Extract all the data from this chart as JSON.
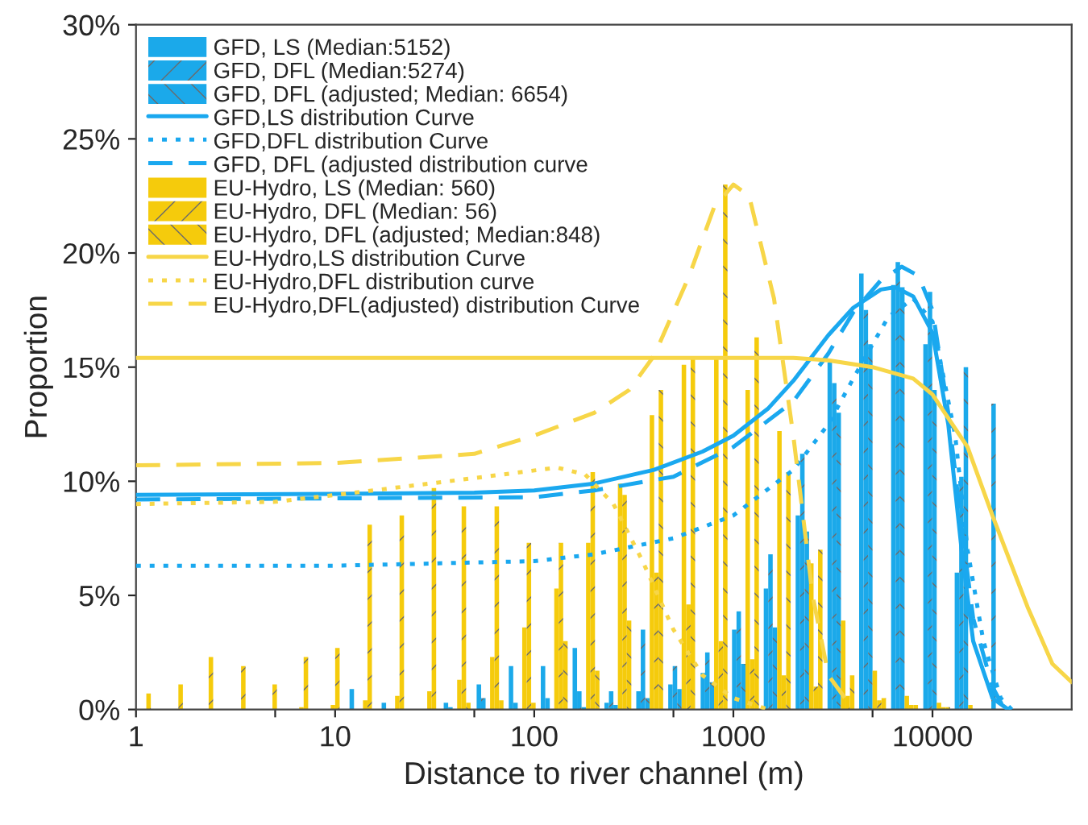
{
  "chart_data": {
    "type": "bar",
    "xlabel": "Distance to river channel (m)",
    "ylabel": "Proportion",
    "log": "x",
    "x": [
      1.07,
      1.55,
      2.2,
      3.2,
      4.6,
      6.6,
      9.5,
      13.8,
      20,
      29,
      41,
      60,
      87,
      126,
      182,
      263,
      380,
      550,
      800,
      1150,
      1660,
      2400,
      3470,
      5000,
      7240,
      10500,
      15100,
      21900
    ],
    "xlim": [
      1,
      50000
    ],
    "xticks": [
      1,
      10,
      100,
      1000,
      10000,
      {
        "value": 5,
        "label": null
      },
      {
        "value": 50,
        "label": null
      },
      {
        "value": 500,
        "label": null
      },
      {
        "value": 5000,
        "label": null
      }
    ],
    "ylim": [
      0,
      30
    ],
    "yticks": [
      {
        "value": 0,
        "label": "0%"
      },
      {
        "value": 5,
        "label": "5%"
      },
      {
        "value": 10,
        "label": "10%"
      },
      {
        "value": 15,
        "label": "15%"
      },
      {
        "value": 20,
        "label": "20%"
      },
      {
        "value": 25,
        "label": "25%"
      },
      {
        "value": 30,
        "label": "30%"
      }
    ],
    "grid": false,
    "legend": "top left",
    "series": [
      {
        "name": "GFD, LS (Median:5152)",
        "color": "#1ba9ea",
        "values": [
          0,
          0,
          0,
          0,
          0,
          0,
          0,
          0.9,
          0.3,
          0,
          0.3,
          1.1,
          1.9,
          1.9,
          2.7,
          0.3,
          0.8,
          1.1,
          1.6,
          3.5,
          5.3,
          8.5,
          15.2,
          19.1,
          18.6,
          16.0,
          6.0,
          0
        ]
      },
      {
        "name": "GFD, DFL (Median:5274)",
        "color": "#1ba9ea",
        "values": [
          0,
          0,
          0,
          0,
          0,
          0,
          0,
          0,
          0,
          0,
          0.1,
          0.5,
          0.3,
          0.5,
          0.8,
          0.8,
          3.5,
          1.9,
          2.5,
          4.3,
          6.8,
          11.2,
          14.3,
          17.5,
          19.6,
          18.3,
          10.2,
          13.4
        ]
      },
      {
        "name": "GFD, DFL (adjusted; Median: 6654)",
        "color": "#1ba9ea",
        "values": [
          0,
          0,
          0,
          0,
          0,
          0,
          0,
          0,
          0,
          0,
          0,
          0,
          0,
          0,
          0.1,
          0.2,
          0.5,
          0.9,
          1.2,
          2.0,
          3.6,
          7.8,
          13.0,
          16.0,
          18.5,
          14.0,
          15.0,
          0
        ]
      },
      {
        "name": "GFD,LS distribution Curve",
        "type": "line",
        "line_style": "solid",
        "color": "#1aa8ef",
        "x": [
          1,
          10,
          50,
          100,
          200,
          400,
          700,
          1000,
          1500,
          2000,
          3000,
          4000,
          5500,
          6500,
          8000,
          10000,
          12000,
          14000,
          16000,
          20000,
          24000
        ],
        "values": [
          9.4,
          9.45,
          9.5,
          9.6,
          9.9,
          10.5,
          11.3,
          12.0,
          13.2,
          14.4,
          16.4,
          17.6,
          18.4,
          18.5,
          18.1,
          16.5,
          12.5,
          7.0,
          3.0,
          0.5,
          0
        ]
      },
      {
        "name": "GFD,DFL distribution Curve",
        "type": "line",
        "line_style": "dotted",
        "color": "#1aa8ef",
        "x": [
          1,
          10,
          100,
          200,
          500,
          1000,
          2000,
          3000,
          4000,
          5000,
          6000,
          8000,
          10000,
          13000,
          15000,
          18000,
          22000,
          25000
        ],
        "values": [
          6.3,
          6.3,
          6.5,
          6.8,
          7.5,
          8.5,
          10.5,
          12.5,
          14.5,
          16.0,
          17.2,
          18.0,
          17.0,
          12.0,
          7.0,
          3.0,
          0.5,
          0
        ]
      },
      {
        "name": "GFD, DFL (adjusted distribution curve",
        "type": "line",
        "line_style": "dashed",
        "color": "#1aa8ef",
        "x": [
          1,
          10,
          100,
          200,
          500,
          1000,
          2000,
          3000,
          4000,
          5500,
          7000,
          8500,
          10000,
          12000,
          14000,
          16000,
          20000,
          23000
        ],
        "values": [
          9.2,
          9.25,
          9.3,
          9.6,
          10.2,
          11.5,
          13.5,
          15.6,
          17.4,
          18.8,
          19.4,
          19.0,
          17.5,
          13.0,
          8.0,
          4.0,
          1.0,
          0
        ]
      },
      {
        "name": "EU-Hydro, LS (Median: 560)",
        "color": "#f5cb0c",
        "values": [
          0,
          0,
          0,
          0,
          0,
          0.1,
          0.2,
          0.4,
          0.6,
          0.8,
          1.3,
          2.3,
          3.6,
          5.3,
          7.3,
          9.9,
          12.9,
          15.1,
          15.4,
          14.0,
          12.2,
          6.4,
          3.9,
          1.7,
          0.6,
          0.3,
          0.2,
          0
        ]
      },
      {
        "name": "EU-Hydro, DFL (Median: 56)",
        "color": "#f5cb0c",
        "values": [
          0.7,
          1.1,
          2.3,
          1.9,
          1.1,
          2.3,
          2.7,
          8.1,
          8.5,
          9.7,
          8.9,
          8.9,
          7.3,
          7.3,
          10.4,
          9.4,
          6.0,
          4.6,
          3.0,
          2.2,
          1.5,
          1.0,
          0.6,
          0.4,
          0.2,
          0.1,
          0,
          0
        ]
      },
      {
        "name": "EU-Hydro, DFL (adjusted; Median:848)",
        "color": "#f5cb0c",
        "values": [
          0,
          0,
          0,
          0,
          0,
          0,
          0,
          0,
          0,
          0,
          0.3,
          0.4,
          0.3,
          3.0,
          1.7,
          3.9,
          14.0,
          15.4,
          23.0,
          16.3,
          10.4,
          7.0,
          1.5,
          0.5,
          0.2,
          0.1,
          0,
          0
        ]
      },
      {
        "name": "EU-Hydro,LS distribution Curve",
        "type": "line",
        "line_style": "solid",
        "color": "#f7d648",
        "x": [
          1,
          100,
          1000,
          2000,
          3000,
          5000,
          8000,
          10000,
          15000,
          20000,
          30000,
          40000,
          50000
        ],
        "values": [
          15.4,
          15.4,
          15.4,
          15.4,
          15.3,
          15.0,
          14.5,
          13.8,
          11.5,
          8.5,
          4.5,
          2.0,
          1.2
        ]
      },
      {
        "name": "EU-Hydro,DFL distribution curve",
        "type": "line",
        "line_style": "dotted",
        "color": "#f7d648",
        "x": [
          1,
          5,
          10,
          30,
          70,
          130,
          180,
          250,
          350,
          500,
          700,
          1000,
          1500
        ],
        "values": [
          9.0,
          9.1,
          9.4,
          9.9,
          10.3,
          10.6,
          10.3,
          9.0,
          6.5,
          3.5,
          1.5,
          0.5,
          0
        ]
      },
      {
        "name": "EU-Hydro,DFL(adjusted) distribution Curve",
        "type": "line",
        "line_style": "dashed",
        "color": "#f7d648",
        "x": [
          1,
          10,
          50,
          100,
          200,
          300,
          400,
          600,
          800,
          1000,
          1200,
          1600,
          2000,
          2500,
          3000,
          4000
        ],
        "values": [
          10.7,
          10.8,
          11.2,
          12.0,
          13.0,
          14.0,
          15.5,
          19.0,
          22.0,
          23.0,
          22.5,
          18.0,
          12.0,
          5.0,
          1.5,
          0
        ]
      }
    ]
  }
}
